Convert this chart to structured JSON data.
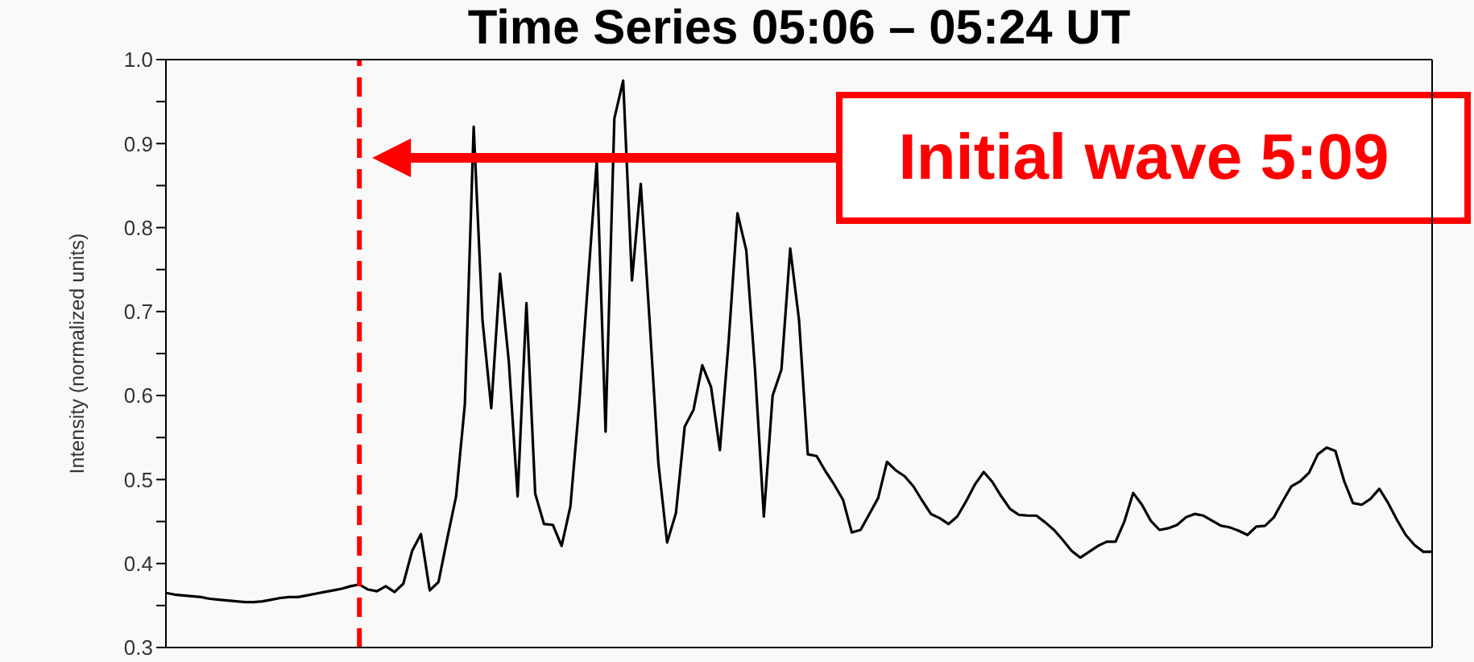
{
  "chart_data": {
    "type": "line",
    "title": "Time Series 05:06 – 05:24 UT",
    "ylabel": "Intensity (normalized units)",
    "categories": [
      null,
      null,
      null,
      null,
      null,
      null,
      null,
      null,
      null,
      null,
      null,
      null,
      null,
      null,
      null,
      null,
      null,
      null,
      null,
      null,
      null,
      null,
      null,
      null,
      null,
      null,
      null,
      null,
      null,
      null,
      null,
      null,
      null,
      null,
      null,
      null,
      null,
      null,
      null,
      null,
      null,
      null,
      null,
      null,
      null,
      null,
      null,
      null,
      null,
      null,
      null,
      null,
      null,
      null,
      null,
      null,
      null,
      null,
      null,
      null,
      null,
      null,
      null,
      null,
      null,
      null,
      null,
      null,
      null,
      null,
      null,
      null,
      null,
      null,
      null,
      null,
      null,
      null,
      null,
      null,
      null,
      null,
      null,
      null,
      null,
      null,
      null,
      null,
      null,
      null,
      null,
      null,
      null,
      null,
      null,
      null,
      null,
      null,
      null,
      null,
      null,
      null,
      null,
      null,
      null,
      null,
      null,
      null,
      null,
      null,
      null,
      null,
      null,
      null,
      null,
      null,
      null,
      null,
      null,
      null,
      null,
      null,
      null,
      null,
      null,
      null,
      null,
      null,
      null,
      null,
      null,
      null,
      null,
      null,
      null,
      null,
      null,
      null,
      null,
      null,
      null,
      null,
      null,
      null,
      null
    ],
    "series": [
      {
        "color": "#000000",
        "values": [
          0.365,
          0.363,
          0.362,
          0.361,
          0.36,
          0.358,
          0.357,
          0.356,
          0.355,
          0.354,
          0.354,
          0.355,
          0.357,
          0.359,
          0.36,
          0.36,
          0.362,
          0.364,
          0.366,
          0.368,
          0.37,
          0.373,
          0.375,
          0.369,
          0.367,
          0.373,
          0.366,
          0.376,
          0.415,
          0.435,
          0.368,
          0.378,
          0.43,
          0.48,
          0.59,
          0.92,
          0.69,
          0.585,
          0.745,
          0.64,
          0.48,
          0.71,
          0.483,
          0.447,
          0.446,
          0.421,
          0.468,
          0.59,
          0.735,
          0.88,
          0.557,
          0.93,
          0.975,
          0.737,
          0.852,
          0.69,
          0.52,
          0.425,
          0.46,
          0.563,
          0.583,
          0.636,
          0.61,
          0.535,
          0.665,
          0.817,
          0.773,
          0.63,
          0.456,
          0.6,
          0.631,
          0.775,
          0.69,
          0.53,
          0.528,
          0.51,
          0.494,
          0.476,
          0.437,
          0.44,
          0.459,
          0.478,
          0.521,
          0.511,
          0.504,
          0.492,
          0.475,
          0.459,
          0.454,
          0.447,
          0.456,
          0.474,
          0.494,
          0.509,
          0.497,
          0.48,
          0.465,
          0.458,
          0.457,
          0.457,
          0.449,
          0.44,
          0.428,
          0.415,
          0.407,
          0.414,
          0.421,
          0.426,
          0.426,
          0.45,
          0.484,
          0.47,
          0.451,
          0.44,
          0.442,
          0.446,
          0.455,
          0.459,
          0.457,
          0.451,
          0.445,
          0.443,
          0.439,
          0.434,
          0.444,
          0.445,
          0.455,
          0.474,
          0.492,
          0.498,
          0.508,
          0.53,
          0.538,
          0.534,
          0.498,
          0.472,
          0.47,
          0.477,
          0.489,
          0.472,
          0.452,
          0.434,
          0.422,
          0.414,
          0.414
        ]
      }
    ],
    "ylim": [
      0.3,
      1.0
    ],
    "yticks": [
      0.3,
      {
        "value": 0.35,
        "label": null
      },
      0.4,
      {
        "value": 0.45,
        "label": null
      },
      0.5,
      {
        "value": 0.55,
        "label": null
      },
      0.6,
      {
        "value": 0.65,
        "label": null
      },
      0.7,
      {
        "value": 0.75,
        "label": null
      },
      0.8,
      {
        "value": 0.85,
        "label": null
      },
      0.9,
      {
        "value": 0.95,
        "label": null
      },
      {
        "value": 1.0,
        "label": "1.0"
      }
    ],
    "annotations": [
      "Initial wave 5:09"
    ],
    "marker": "none",
    "line_style": "solid"
  }
}
